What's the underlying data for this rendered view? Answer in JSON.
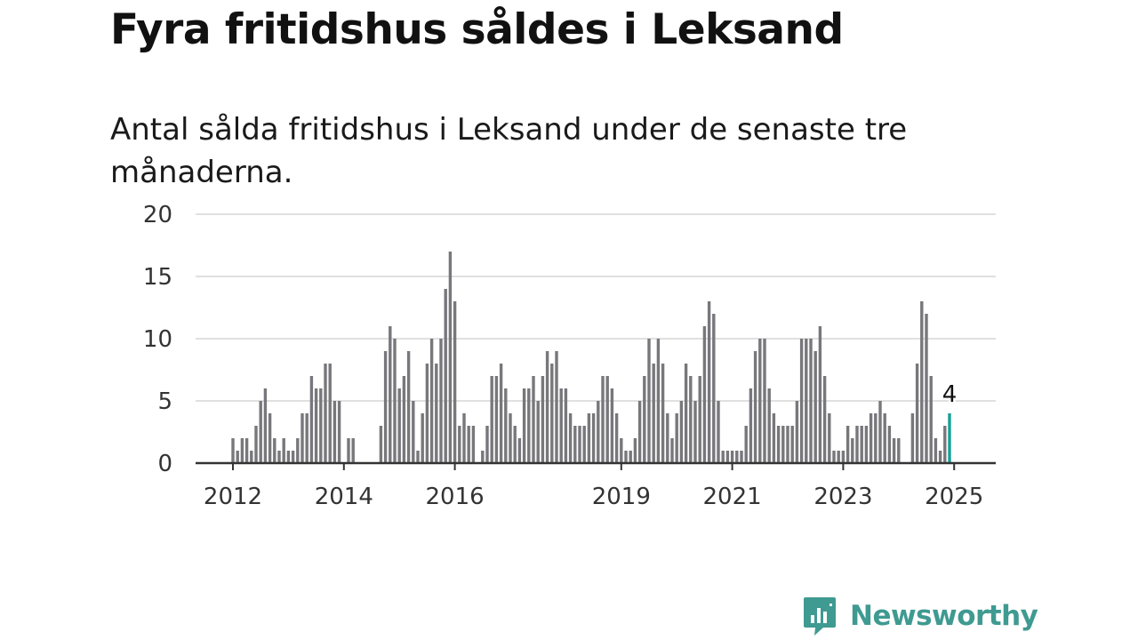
{
  "title": "Fyra fritidshus såldes i Leksand",
  "subtitle": "Antal sålda fritidshus i Leksand under de senaste tre månaderna.",
  "brand": {
    "name": "Newsworthy",
    "icon": "newsworthy-logo-icon",
    "color": "#3f9a91"
  },
  "chart_data": {
    "type": "bar",
    "title": "",
    "xlabel": "",
    "ylabel": "",
    "x_start": "2012-01",
    "x_end": "2025-02",
    "ylim": [
      0,
      20
    ],
    "yticks": [
      0,
      5,
      10,
      15,
      20
    ],
    "xtick_labels": [
      "2012",
      "2014",
      "2016",
      "2019",
      "2021",
      "2023",
      "2025"
    ],
    "grid": true,
    "bar_color": "#77777c",
    "highlight_color": "#16a196",
    "highlight_last": true,
    "last_value_label": "4",
    "values": [
      2,
      1,
      2,
      2,
      1,
      3,
      5,
      6,
      4,
      2,
      1,
      2,
      1,
      1,
      2,
      4,
      4,
      7,
      6,
      6,
      8,
      8,
      5,
      5,
      0,
      2,
      2,
      0,
      0,
      0,
      0,
      0,
      3,
      9,
      11,
      10,
      6,
      7,
      9,
      5,
      1,
      4,
      8,
      10,
      8,
      10,
      14,
      17,
      13,
      3,
      4,
      3,
      3,
      0,
      1,
      3,
      7,
      7,
      8,
      6,
      4,
      3,
      2,
      6,
      6,
      7,
      5,
      7,
      9,
      8,
      9,
      6,
      6,
      4,
      3,
      3,
      3,
      4,
      4,
      5,
      7,
      7,
      6,
      4,
      2,
      1,
      1,
      2,
      5,
      7,
      10,
      8,
      10,
      8,
      4,
      2,
      4,
      5,
      8,
      7,
      5,
      7,
      11,
      13,
      12,
      5,
      1,
      1,
      1,
      1,
      1,
      3,
      6,
      9,
      10,
      10,
      6,
      4,
      3,
      3,
      3,
      3,
      5,
      10,
      10,
      10,
      9,
      11,
      7,
      4,
      1,
      1,
      1,
      3,
      2,
      3,
      3,
      3,
      4,
      4,
      5,
      4,
      3,
      2,
      2,
      0,
      0,
      4,
      8,
      13,
      12,
      7,
      2,
      1,
      3,
      4
    ]
  }
}
